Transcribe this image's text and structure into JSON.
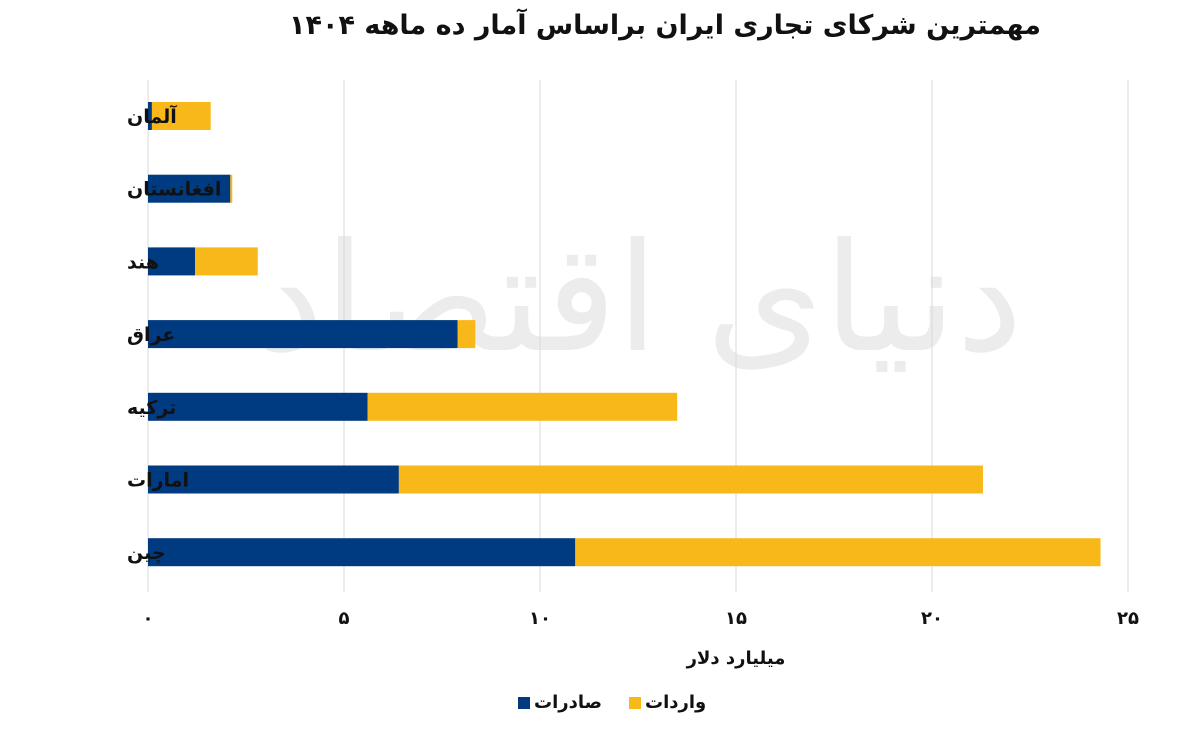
{
  "chart_data": {
    "type": "bar",
    "orientation": "horizontal",
    "stacked": true,
    "title": "مهمترین شرکای تجاری ایران براساس آمار ده ماهه ۱۴۰۴",
    "xlabel": "میلیارد دلار",
    "ylabel": "",
    "xlim": [
      0,
      25
    ],
    "x_ticks": [
      0,
      5,
      10,
      15,
      20,
      25
    ],
    "x_tick_labels": [
      "۰",
      "۵",
      "۱۰",
      "۱۵",
      "۲۰",
      "۲۵"
    ],
    "categories": [
      "آلمان",
      "افغانستان",
      "هند",
      "عراق",
      "ترکیه",
      "امارات",
      "چین"
    ],
    "series": [
      {
        "name": "صادرات",
        "color": "#003a80",
        "values": [
          0.1,
          2.1,
          1.2,
          7.9,
          5.6,
          6.4,
          10.9
        ]
      },
      {
        "name": "واردات",
        "color": "#f9b81a",
        "values": [
          1.5,
          0.05,
          1.6,
          0.45,
          7.9,
          14.9,
          13.4
        ]
      }
    ],
    "grid": true,
    "legend_position": "bottom-center"
  },
  "watermark": "دنیای اقتصاد"
}
